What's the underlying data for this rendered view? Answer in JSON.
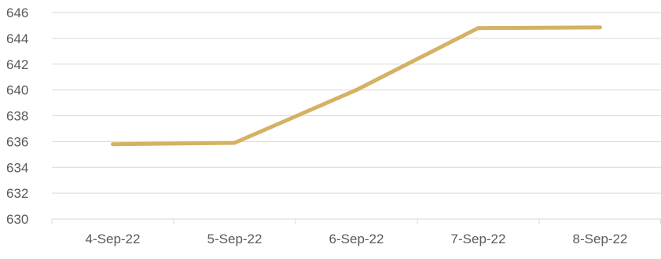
{
  "chart_data": {
    "type": "line",
    "title": "",
    "xlabel": "",
    "ylabel": "",
    "categories": [
      "4-Sep-22",
      "5-Sep-22",
      "6-Sep-22",
      "7-Sep-22",
      "8-Sep-22"
    ],
    "series": [
      {
        "values": [
          635.8,
          635.9,
          640.0,
          644.8,
          644.85
        ]
      }
    ],
    "ylim": [
      630,
      646
    ],
    "yticks": [
      630,
      632,
      634,
      636,
      638,
      640,
      642,
      644,
      646
    ],
    "grid": true,
    "legend": "none",
    "colors": {
      "line": "#d4b264",
      "grid": "#d9d9d9",
      "text": "#595959"
    }
  }
}
